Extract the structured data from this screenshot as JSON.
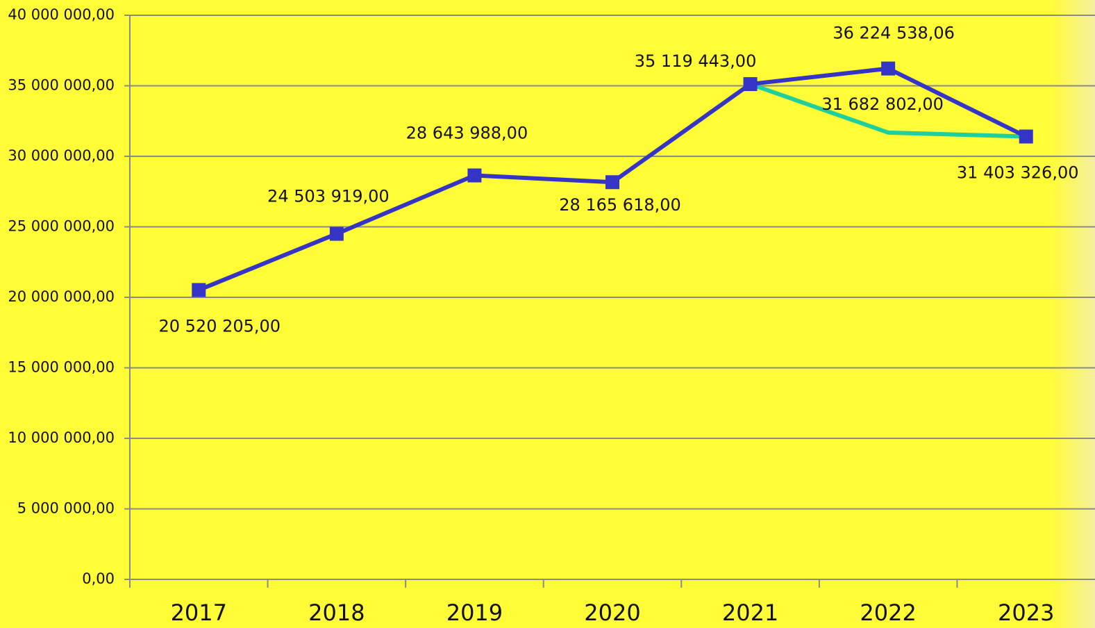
{
  "chart_data": {
    "type": "line",
    "categories": [
      "2017",
      "2018",
      "2019",
      "2020",
      "2021",
      "2022",
      "2023"
    ],
    "series": [
      {
        "color": "#1fcf9e",
        "values": [
          null,
          null,
          null,
          null,
          35119443,
          31682802,
          31403326
        ],
        "value_labels": [
          null,
          null,
          null,
          null,
          null,
          "31 682 802,00",
          null
        ]
      },
      {
        "color": "#3434c6",
        "values": [
          20520205,
          24503919,
          28643988,
          28165618,
          35119443,
          36224538.06,
          31403326
        ],
        "value_labels": [
          "20 520 205,00",
          "24 503 919,00",
          "28 643 988,00",
          "28 165 618,00",
          "35 119 443,00",
          "36 224 538,06",
          "31 403 326,00"
        ]
      }
    ],
    "ylim": [
      0,
      40000000
    ],
    "yticks": [
      {
        "value": 0,
        "label": "0,00"
      },
      {
        "value": 5000000,
        "label": "5 000 000,00"
      },
      {
        "value": 10000000,
        "label": "10 000 000,00"
      },
      {
        "value": 15000000,
        "label": "15 000 000,00"
      },
      {
        "value": 20000000,
        "label": "20 000 000,00"
      },
      {
        "value": 25000000,
        "label": "25 000 000,00"
      },
      {
        "value": 30000000,
        "label": "30 000 000,00"
      },
      {
        "value": 35000000,
        "label": "35 000 000,00"
      },
      {
        "value": 40000000,
        "label": "40 000 000,00"
      }
    ],
    "grid": true
  }
}
